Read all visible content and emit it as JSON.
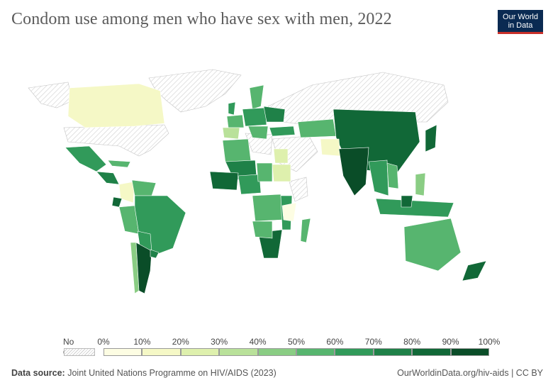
{
  "header": {
    "title": "Condom use among men who have sex with men, 2022",
    "logo_line1": "Our World",
    "logo_line2": "in Data"
  },
  "legend": {
    "no_data_label": "No data",
    "ticks": [
      "0%",
      "10%",
      "20%",
      "30%",
      "40%",
      "50%",
      "60%",
      "70%",
      "80%",
      "90%",
      "100%"
    ],
    "bin_colors": [
      "#fdfde3",
      "#f5f8c6",
      "#def0ad",
      "#b9e19a",
      "#8acd84",
      "#57b56f",
      "#319a5a",
      "#1f8148",
      "#116837",
      "#0a4d28"
    ],
    "no_data_color": "#d6d6d6"
  },
  "footer": {
    "source_prefix": "Data source:",
    "source_text": "Joint United Nations Programme on HIV/AIDS (2023)",
    "link": "OurWorldinData.org/hiv-aids | CC BY"
  }
}
